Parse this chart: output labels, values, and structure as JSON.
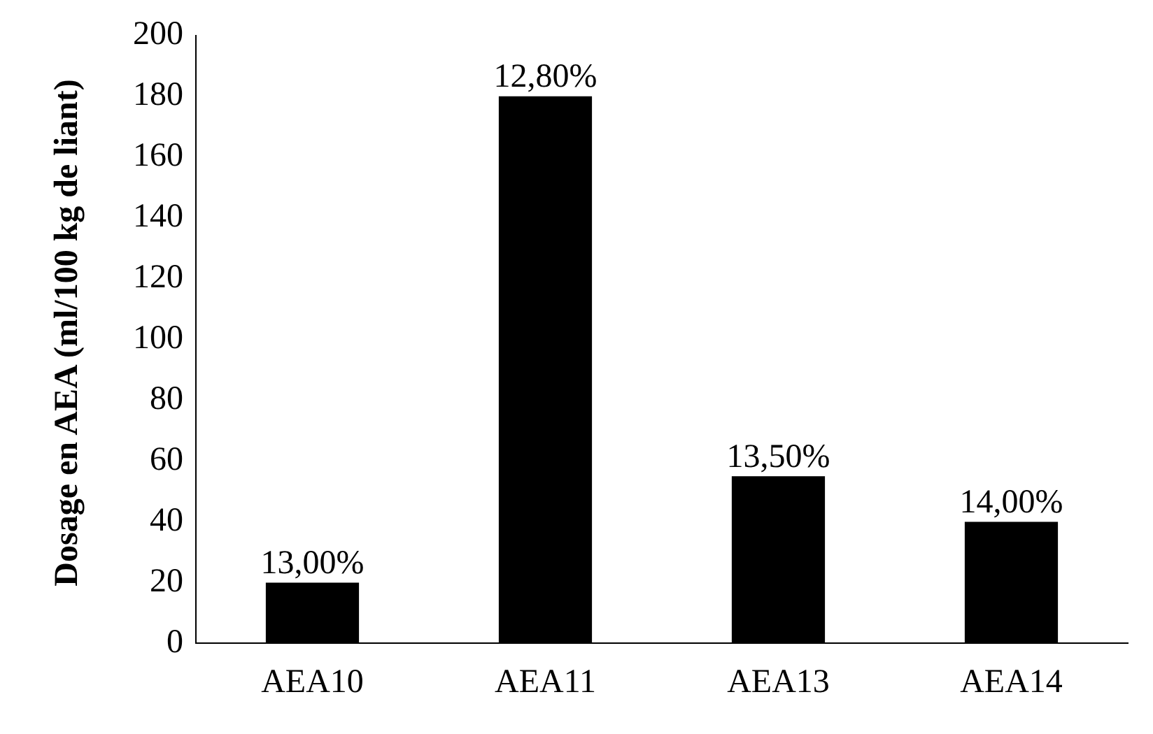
{
  "chart_data": {
    "type": "bar",
    "ylabel": "Dosage en AEA (ml/100 kg de liant)",
    "categories": [
      "AEA10",
      "AEA11",
      "AEA13",
      "AEA14"
    ],
    "values": [
      20,
      180,
      55,
      40
    ],
    "color": "#000000",
    "annotations": [
      {
        "text": "13,00%",
        "x": "AEA10",
        "y": 20
      },
      {
        "text": "12,80%",
        "x": "AEA11",
        "y": 180
      },
      {
        "text": "13,50%",
        "x": "AEA13",
        "y": 55
      },
      {
        "text": "14,00%",
        "x": "AEA14",
        "y": 40
      }
    ],
    "ylim": [
      0,
      200
    ],
    "yticks": [
      0,
      20,
      40,
      60,
      80,
      100,
      120,
      140,
      160,
      180,
      200
    ],
    "grid": false,
    "legend": false
  }
}
